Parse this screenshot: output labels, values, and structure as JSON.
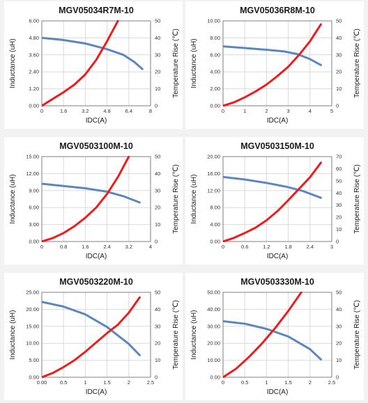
{
  "colors": {
    "inductance": "#5b86bf",
    "temperature": "#ee1c1c",
    "grid": "#d9d9d9",
    "plot_border": "#7f7f7f"
  },
  "chart_data": [
    {
      "type": "line",
      "title": "MGV05034R7M-10",
      "xlabel": "IDC(A)",
      "ylabel": "Inductance (uH)",
      "y2label": "Temperature Rise (℃)",
      "x_ticks": [
        "0",
        "1.6",
        "3.2",
        "4.8",
        "6.4",
        "8"
      ],
      "xlim": [
        0,
        8
      ],
      "y_ticks": [
        "0.00",
        "1.20",
        "2.40",
        "3.60",
        "4.80",
        "6.00"
      ],
      "ylim": [
        0,
        6
      ],
      "y2_ticks": [
        "0",
        "10",
        "20",
        "30",
        "40",
        "50"
      ],
      "y2lim": [
        0,
        50
      ],
      "grid": true,
      "series": [
        {
          "axis": "left",
          "x": [
            0,
            1.6,
            3.2,
            4.8,
            6.0,
            6.8,
            7.4
          ],
          "y": [
            4.8,
            4.65,
            4.4,
            4.0,
            3.6,
            3.1,
            2.6
          ]
        },
        {
          "axis": "right",
          "x": [
            0,
            0.8,
            1.6,
            2.4,
            3.2,
            4.0,
            4.8,
            5.6
          ],
          "y": [
            0,
            4,
            8,
            12.5,
            18.5,
            27,
            38,
            50
          ]
        }
      ]
    },
    {
      "type": "line",
      "title": "MGV05036R8M-10",
      "xlabel": "IDC(A)",
      "ylabel": "Inductance (uH)",
      "y2label": "Temperature Rise (℃)",
      "x_ticks": [
        "0",
        "1",
        "2",
        "3",
        "4",
        "5"
      ],
      "xlim": [
        0,
        5
      ],
      "y_ticks": [
        "0.00",
        "2.00",
        "4.00",
        "6.00",
        "8.00",
        "10.00"
      ],
      "ylim": [
        0,
        10
      ],
      "y2_ticks": [
        "0",
        "10",
        "20",
        "30",
        "40",
        "50"
      ],
      "y2lim": [
        0,
        50
      ],
      "grid": true,
      "series": [
        {
          "axis": "left",
          "x": [
            0,
            1,
            2,
            2.8,
            3.4,
            4.0,
            4.5
          ],
          "y": [
            7.0,
            6.8,
            6.6,
            6.4,
            6.1,
            5.5,
            4.8
          ]
        },
        {
          "axis": "right",
          "x": [
            0,
            0.5,
            1,
            1.5,
            2,
            2.5,
            3,
            3.5,
            4,
            4.5
          ],
          "y": [
            0,
            2,
            5,
            8.5,
            12.5,
            17.5,
            23,
            30,
            38,
            48
          ]
        }
      ]
    },
    {
      "type": "line",
      "title": "MGV0503100M-10",
      "xlabel": "IDC(A)",
      "ylabel": "Inductance (uH)",
      "y2label": "Temperature Rise (℃)",
      "x_ticks": [
        "0",
        "0.8",
        "1.6",
        "2.4",
        "3.2",
        "4"
      ],
      "xlim": [
        0,
        4
      ],
      "y_ticks": [
        "0.00",
        "3.00",
        "6.00",
        "9.00",
        "12.00",
        "15.00"
      ],
      "ylim": [
        0,
        15
      ],
      "y2_ticks": [
        "0",
        "10",
        "20",
        "30",
        "40",
        "50"
      ],
      "y2lim": [
        0,
        50
      ],
      "grid": true,
      "series": [
        {
          "axis": "left",
          "x": [
            0,
            0.8,
            1.6,
            2.4,
            3.0,
            3.6
          ],
          "y": [
            10.2,
            9.8,
            9.4,
            8.8,
            8.0,
            6.9
          ]
        },
        {
          "axis": "right",
          "x": [
            0,
            0.4,
            0.8,
            1.2,
            1.6,
            2.0,
            2.4,
            2.8,
            3.2
          ],
          "y": [
            0,
            2,
            5,
            9,
            14,
            20,
            28,
            38,
            50
          ]
        }
      ]
    },
    {
      "type": "line",
      "title": "MGV0503150M-10",
      "xlabel": "IDC(A)",
      "ylabel": "Inductance (uH)",
      "y2label": "Temperature Rise (℃)",
      "x_ticks": [
        "0",
        "0.6",
        "1.2",
        "1.8",
        "2.4",
        "3"
      ],
      "xlim": [
        0,
        3
      ],
      "y_ticks": [
        "0.00",
        "4.00",
        "8.00",
        "12.00",
        "16.00",
        "20.00"
      ],
      "ylim": [
        0,
        20
      ],
      "y2_ticks": [
        "0",
        "10",
        "20",
        "30",
        "40",
        "50",
        "60",
        "70"
      ],
      "y2lim": [
        0,
        70
      ],
      "grid": true,
      "series": [
        {
          "axis": "left",
          "x": [
            0,
            0.6,
            1.2,
            1.8,
            2.2,
            2.7
          ],
          "y": [
            15.2,
            14.6,
            13.8,
            12.8,
            11.9,
            10.3
          ]
        },
        {
          "axis": "right",
          "x": [
            0,
            0.3,
            0.6,
            0.9,
            1.2,
            1.5,
            1.8,
            2.1,
            2.4,
            2.7
          ],
          "y": [
            0,
            3,
            7,
            11.5,
            17.5,
            25,
            34,
            43.5,
            53,
            65
          ]
        }
      ]
    },
    {
      "type": "line",
      "title": "MGV0503220M-10",
      "xlabel": "IDC(A)",
      "ylabel": "Inductance (uH)",
      "y2label": "Temperature Rise (℃)",
      "x_ticks": [
        "0.00",
        "0.5",
        "1",
        "1.5",
        "2",
        "2.5"
      ],
      "xlim": [
        0,
        2.5
      ],
      "y_ticks": [
        "0.00",
        "5.00",
        "10.00",
        "15.00",
        "20.00",
        "25.00"
      ],
      "ylim": [
        0,
        25
      ],
      "y2_ticks": [
        "0",
        "10",
        "20",
        "30",
        "40",
        "50"
      ],
      "y2lim": [
        0,
        50
      ],
      "grid": true,
      "series": [
        {
          "axis": "left",
          "x": [
            0,
            0.5,
            1.0,
            1.5,
            2.0,
            2.25
          ],
          "y": [
            22.2,
            20.8,
            18.5,
            14.8,
            9.8,
            6.5
          ]
        },
        {
          "axis": "right",
          "x": [
            0,
            0.25,
            0.5,
            0.75,
            1.0,
            1.25,
            1.5,
            1.75,
            2.0,
            2.25
          ],
          "y": [
            0,
            2.5,
            6,
            10,
            15,
            20.5,
            26,
            31,
            38,
            47
          ]
        }
      ]
    },
    {
      "type": "line",
      "title": "MGV0503330M-10",
      "xlabel": "IDC(A)",
      "ylabel": "Inductance (uH)",
      "y2label": "Temperature Rise (℃)",
      "x_ticks": [
        "0",
        "0.5",
        "1",
        "1.5",
        "2",
        "2.5"
      ],
      "xlim": [
        0,
        2.5
      ],
      "y_ticks": [
        "0.00",
        "10.00",
        "20.00",
        "30.00",
        "40.00",
        "50.00"
      ],
      "ylim": [
        0,
        50
      ],
      "y2_ticks": [
        "0",
        "10",
        "20",
        "30",
        "40",
        "50"
      ],
      "y2lim": [
        0,
        50
      ],
      "grid": true,
      "series": [
        {
          "axis": "left",
          "x": [
            0,
            0.5,
            1.0,
            1.5,
            2.0,
            2.25
          ],
          "y": [
            33.0,
            31.5,
            28.5,
            24.0,
            16.5,
            10.5
          ]
        },
        {
          "axis": "right",
          "x": [
            0,
            0.3,
            0.6,
            0.9,
            1.2,
            1.5,
            1.8
          ],
          "y": [
            0,
            5,
            12,
            20,
            29,
            39,
            50
          ]
        }
      ]
    }
  ]
}
